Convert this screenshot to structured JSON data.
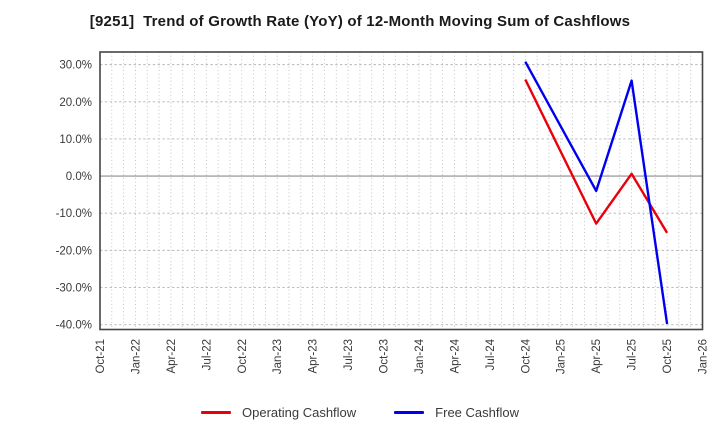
{
  "chart_data": {
    "type": "line",
    "title": "[9251]  Trend of Growth Rate (YoY) of 12-Month Moving Sum of Cashflows",
    "xlabel": "",
    "ylabel": "",
    "x_tick_labels": [
      "Oct-21",
      "Jan-22",
      "Apr-22",
      "Jul-22",
      "Oct-22",
      "Jan-23",
      "Apr-23",
      "Jul-23",
      "Oct-23",
      "Jan-24",
      "Apr-24",
      "Jul-24",
      "Oct-24",
      "Jan-25",
      "Apr-25",
      "Jul-25",
      "Oct-25",
      "Jan-26"
    ],
    "x_axis_start": "Oct-21",
    "x_axis_end": "Jan-26",
    "y_ticks": [
      30,
      20,
      10,
      0,
      -10,
      -20,
      -30,
      -40
    ],
    "y_tick_suffix": "%",
    "ylim": [
      -41.3,
      33.4
    ],
    "grid": "dotted",
    "zero_line": true,
    "legend_position": "bottom-center",
    "series": [
      {
        "name": "Operating Cashflow",
        "color": "#e8000d",
        "points": [
          {
            "x": "Oct-24",
            "y": 26.0
          },
          {
            "x": "Jan-25",
            "y": 6.6
          },
          {
            "x": "Apr-25",
            "y": -12.8
          },
          {
            "x": "Jul-25",
            "y": 0.6
          },
          {
            "x": "Oct-25",
            "y": -15.3
          }
        ]
      },
      {
        "name": "Free Cashflow",
        "color": "#0000f0",
        "points": [
          {
            "x": "Oct-24",
            "y": 30.8
          },
          {
            "x": "Jan-25",
            "y": 13.4
          },
          {
            "x": "Apr-25",
            "y": -4.0
          },
          {
            "x": "Jul-25",
            "y": 25.7
          },
          {
            "x": "Oct-25",
            "y": -39.8
          }
        ]
      }
    ]
  },
  "style_colors": {
    "grid": "#b5b5b5",
    "zero_line": "#8c8c8c",
    "border": "#454545",
    "tick_text": "#3a3a3a"
  }
}
